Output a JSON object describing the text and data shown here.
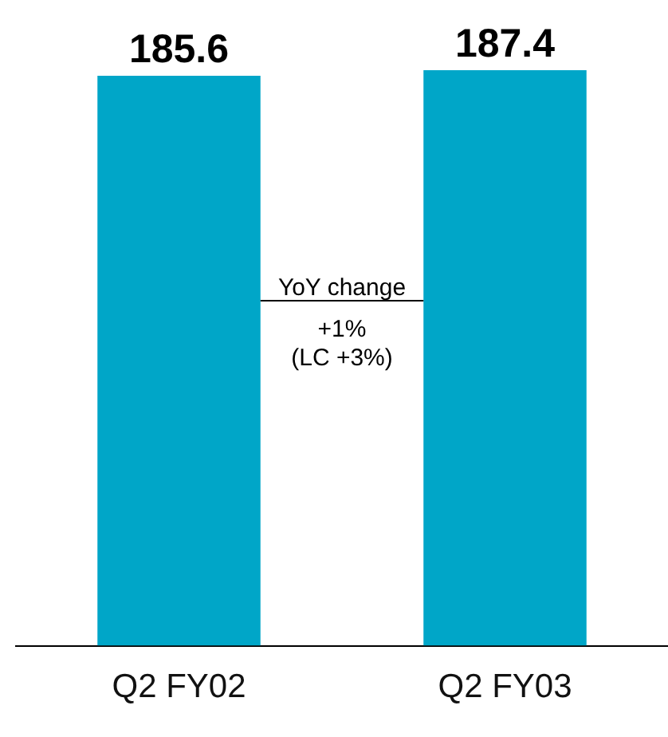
{
  "chart_data": {
    "type": "bar",
    "categories": [
      "Q2 FY02",
      "Q2 FY03"
    ],
    "values": [
      185.6,
      187.4
    ],
    "color": "#00a6c8",
    "data_labels": true,
    "annotations": [
      "YoY change",
      "+1%",
      "(LC +3%)"
    ],
    "legend": false,
    "grid": false
  }
}
